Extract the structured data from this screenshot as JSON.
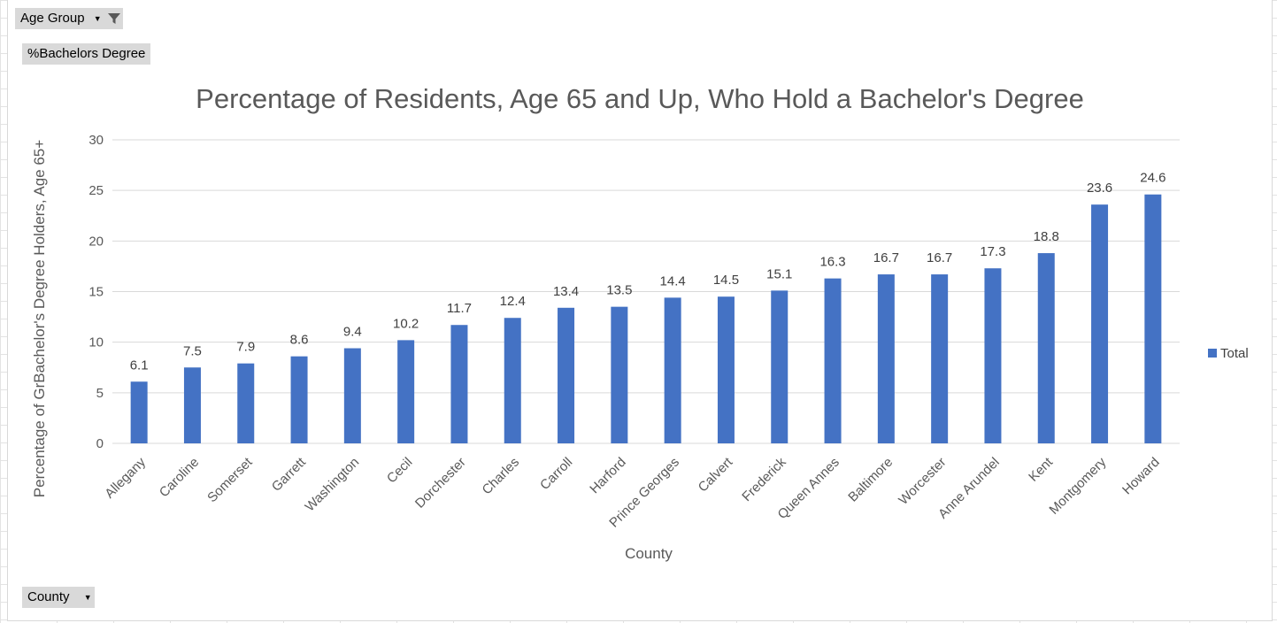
{
  "pivot_fields": {
    "filter_label": "Age Group",
    "value_label": "%Bachelors Degree",
    "axis_label": "County"
  },
  "colors": {
    "bar": "#4472c4",
    "grid": "#d9d9d9",
    "text": "#595959"
  },
  "chart_data": {
    "type": "bar",
    "title": "Percentage of Residents, Age 65 and Up, Who Hold a Bachelor's Degree",
    "xlabel": "County",
    "ylabel": "Percentage of GrBachelor's Degree Holders, Age 65+",
    "ylim": [
      0,
      30
    ],
    "yticks": [
      0,
      5,
      10,
      15,
      20,
      25,
      30
    ],
    "grid": true,
    "legend_position": "right",
    "categories": [
      "Allegany",
      "Caroline",
      "Somerset",
      "Garrett",
      "Washington",
      "Cecil",
      "Dorchester",
      "Charles",
      "Carroll",
      "Harford",
      "Prince Georges",
      "Calvert",
      "Frederick",
      "Queen Annes",
      "Baltimore",
      "Worcester",
      "Anne Arundel",
      "Kent",
      "Montgomery",
      "Howard"
    ],
    "series": [
      {
        "name": "Total",
        "values": [
          6.1,
          7.5,
          7.9,
          8.6,
          9.4,
          10.2,
          11.7,
          12.4,
          13.4,
          13.5,
          14.4,
          14.5,
          15.1,
          16.3,
          16.7,
          16.7,
          17.3,
          18.8,
          23.6,
          24.6
        ]
      }
    ]
  }
}
